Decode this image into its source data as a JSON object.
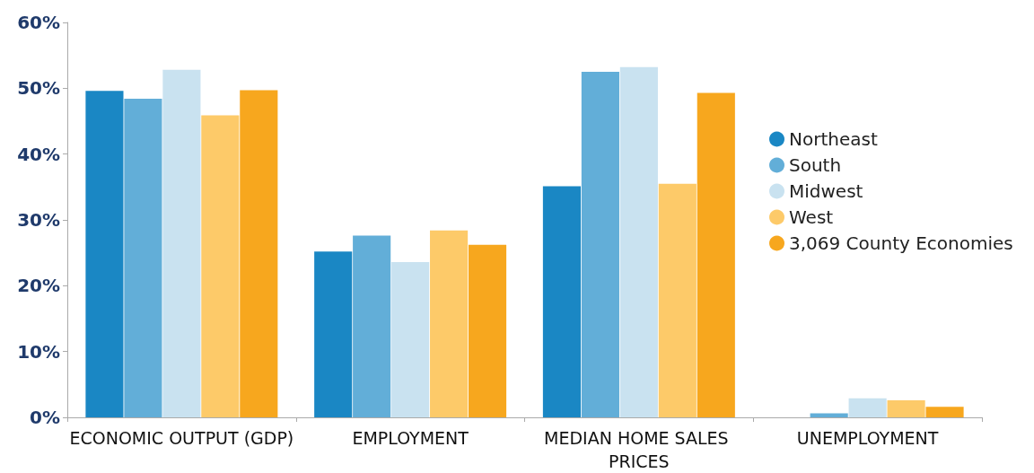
{
  "chart_data": {
    "type": "bar",
    "categories": [
      "ECONOMIC OUTPUT (GDP)",
      "EMPLOYMENT",
      "MEDIAN HOME SALES PRICES",
      "UNEMPLOYMENT"
    ],
    "series": [
      {
        "name": "Northeast",
        "color": "#1a87c4",
        "values": [
          49.6,
          25.2,
          35.1,
          0
        ]
      },
      {
        "name": "South",
        "color": "#62aed8",
        "values": [
          48.4,
          27.6,
          52.5,
          0.6
        ]
      },
      {
        "name": "Midwest",
        "color": "#c9e2f0",
        "values": [
          52.8,
          23.6,
          53.2,
          2.9
        ]
      },
      {
        "name": "West",
        "color": "#fdca69",
        "values": [
          45.9,
          28.4,
          35.5,
          2.6
        ]
      },
      {
        "name": "3,069 County Economies",
        "color": "#f7a71e",
        "values": [
          49.7,
          26.2,
          49.3,
          1.6
        ]
      }
    ],
    "ylim": [
      0,
      60
    ],
    "yticks": [
      {
        "value": 0,
        "label": "0%"
      },
      {
        "value": 10,
        "label": "10%"
      },
      {
        "value": 20,
        "label": "20%"
      },
      {
        "value": 30,
        "label": "30%"
      },
      {
        "value": 40,
        "label": "40%"
      },
      {
        "value": 50,
        "label": "50%"
      },
      {
        "value": 60,
        "label": "60%"
      }
    ],
    "grid": false,
    "legend": "right",
    "marker": "circle"
  }
}
